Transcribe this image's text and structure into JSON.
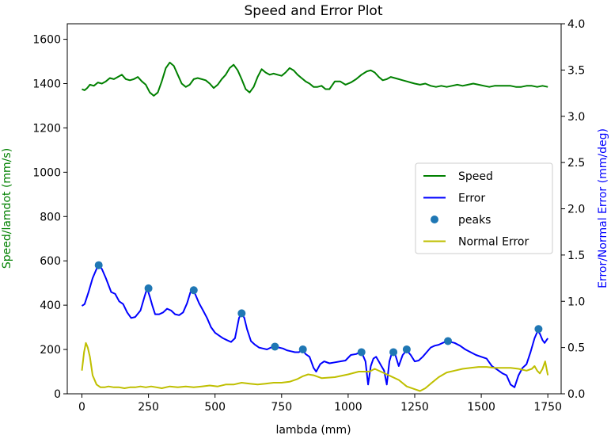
{
  "chart_data": {
    "type": "line",
    "title": "Speed and Error Plot",
    "xlabel": "lambda (mm)",
    "ylabel_left": "Speed/lamdot (mm/s)",
    "ylabel_right": "Error/Normal Error (mm/deg)",
    "xlim": [
      -55,
      1800
    ],
    "ylim_left": [
      0,
      1670
    ],
    "ylim_right": [
      0,
      4.0
    ],
    "xticks": [
      0,
      250,
      500,
      750,
      1000,
      1250,
      1500,
      1750
    ],
    "yticks_left": [
      0,
      200,
      400,
      600,
      800,
      1000,
      1200,
      1400,
      1600
    ],
    "yticks_right": [
      "0.0",
      "0.5",
      "1.0",
      "1.5",
      "2.0",
      "2.5",
      "3.0",
      "3.5",
      "4.0"
    ],
    "legend_position": "center-right",
    "colors": {
      "speed": "#008000",
      "error": "#0000ff",
      "peaks": "#1f77b4",
      "normal_error": "#bfbf00",
      "left_axis_label": "#008000",
      "right_axis_label": "#0000ff"
    },
    "series": [
      {
        "name": "Speed",
        "axis": "left",
        "x": [
          0,
          10,
          20,
          30,
          45,
          60,
          75,
          90,
          105,
          120,
          135,
          150,
          165,
          180,
          195,
          210,
          225,
          240,
          255,
          270,
          285,
          300,
          315,
          330,
          345,
          360,
          375,
          390,
          405,
          420,
          435,
          450,
          465,
          480,
          495,
          510,
          525,
          540,
          555,
          570,
          585,
          600,
          615,
          630,
          645,
          660,
          675,
          690,
          705,
          720,
          735,
          750,
          765,
          780,
          795,
          810,
          825,
          840,
          855,
          870,
          885,
          900,
          915,
          930,
          950,
          970,
          990,
          1010,
          1030,
          1050,
          1070,
          1085,
          1100,
          1115,
          1130,
          1145,
          1160,
          1175,
          1190,
          1205,
          1220,
          1235,
          1250,
          1270,
          1290,
          1310,
          1330,
          1350,
          1370,
          1390,
          1410,
          1430,
          1450,
          1470,
          1490,
          1510,
          1530,
          1550,
          1570,
          1590,
          1610,
          1630,
          1650,
          1670,
          1690,
          1710,
          1730,
          1750
        ],
        "values": [
          1375,
          1370,
          1380,
          1395,
          1390,
          1405,
          1400,
          1410,
          1425,
          1420,
          1430,
          1440,
          1420,
          1415,
          1420,
          1430,
          1410,
          1395,
          1360,
          1345,
          1360,
          1410,
          1470,
          1495,
          1480,
          1440,
          1400,
          1385,
          1395,
          1420,
          1425,
          1420,
          1415,
          1400,
          1380,
          1395,
          1420,
          1440,
          1470,
          1485,
          1460,
          1420,
          1375,
          1360,
          1385,
          1430,
          1465,
          1450,
          1440,
          1445,
          1440,
          1435,
          1450,
          1470,
          1460,
          1440,
          1425,
          1410,
          1400,
          1385,
          1385,
          1390,
          1375,
          1375,
          1410,
          1410,
          1395,
          1405,
          1420,
          1440,
          1455,
          1460,
          1450,
          1430,
          1415,
          1420,
          1430,
          1425,
          1420,
          1415,
          1410,
          1405,
          1400,
          1395,
          1400,
          1390,
          1385,
          1390,
          1385,
          1390,
          1395,
          1390,
          1395,
          1400,
          1395,
          1390,
          1385,
          1390,
          1390,
          1390,
          1390,
          1385,
          1385,
          1390,
          1390,
          1385,
          1390,
          1385
        ]
      },
      {
        "name": "Error",
        "axis": "right",
        "x": [
          0,
          10,
          25,
          40,
          55,
          63,
          75,
          90,
          110,
          125,
          140,
          155,
          170,
          185,
          200,
          220,
          235,
          245,
          255,
          265,
          275,
          290,
          305,
          320,
          335,
          350,
          365,
          380,
          395,
          408,
          415,
          425,
          440,
          455,
          470,
          485,
          500,
          515,
          530,
          545,
          560,
          575,
          590,
          600,
          610,
          620,
          635,
          650,
          665,
          680,
          695,
          710,
          725,
          740,
          755,
          770,
          785,
          800,
          815,
          828,
          840,
          855,
          870,
          880,
          895,
          910,
          930,
          950,
          970,
          990,
          1010,
          1030,
          1045,
          1055,
          1065,
          1075,
          1085,
          1095,
          1105,
          1115,
          1125,
          1135,
          1145,
          1155,
          1165,
          1175,
          1190,
          1205,
          1220,
          1235,
          1250,
          1265,
          1280,
          1295,
          1310,
          1325,
          1340,
          1355,
          1372,
          1385,
          1400,
          1420,
          1440,
          1460,
          1480,
          1500,
          1520,
          1540,
          1560,
          1580,
          1595,
          1610,
          1625,
          1640,
          1655,
          1670,
          1685,
          1700,
          1712,
          1720,
          1730,
          1738,
          1745,
          1750
        ],
        "values": [
          0.95,
          0.97,
          1.1,
          1.25,
          1.35,
          1.39,
          1.35,
          1.25,
          1.1,
          1.08,
          1.0,
          0.97,
          0.88,
          0.82,
          0.83,
          0.9,
          1.05,
          1.14,
          1.05,
          0.95,
          0.86,
          0.86,
          0.88,
          0.92,
          0.9,
          0.86,
          0.85,
          0.88,
          0.98,
          1.1,
          1.12,
          1.08,
          0.98,
          0.9,
          0.82,
          0.72,
          0.66,
          0.63,
          0.6,
          0.58,
          0.56,
          0.6,
          0.82,
          0.87,
          0.82,
          0.7,
          0.57,
          0.53,
          0.5,
          0.49,
          0.48,
          0.5,
          0.51,
          0.5,
          0.49,
          0.47,
          0.46,
          0.45,
          0.45,
          0.48,
          0.43,
          0.4,
          0.28,
          0.24,
          0.32,
          0.35,
          0.33,
          0.34,
          0.35,
          0.36,
          0.42,
          0.43,
          0.45,
          0.42,
          0.35,
          0.1,
          0.3,
          0.38,
          0.4,
          0.35,
          0.3,
          0.25,
          0.1,
          0.35,
          0.45,
          0.44,
          0.3,
          0.42,
          0.47,
          0.42,
          0.35,
          0.36,
          0.4,
          0.45,
          0.5,
          0.52,
          0.53,
          0.55,
          0.57,
          0.56,
          0.55,
          0.52,
          0.48,
          0.45,
          0.42,
          0.4,
          0.38,
          0.3,
          0.26,
          0.22,
          0.2,
          0.1,
          0.07,
          0.2,
          0.28,
          0.32,
          0.45,
          0.6,
          0.68,
          0.65,
          0.58,
          0.55,
          0.58,
          0.6
        ]
      },
      {
        "name": "Normal Error",
        "axis": "right",
        "x": [
          0,
          8,
          15,
          22,
          30,
          40,
          55,
          70,
          85,
          100,
          120,
          140,
          160,
          180,
          200,
          220,
          240,
          260,
          280,
          300,
          330,
          360,
          390,
          420,
          450,
          480,
          510,
          540,
          570,
          600,
          630,
          660,
          690,
          720,
          750,
          780,
          810,
          830,
          850,
          870,
          900,
          950,
          1000,
          1040,
          1080,
          1100,
          1130,
          1160,
          1190,
          1220,
          1250,
          1270,
          1290,
          1310,
          1340,
          1370,
          1400,
          1430,
          1460,
          1490,
          1520,
          1550,
          1580,
          1610,
          1640,
          1670,
          1690,
          1700,
          1710,
          1720,
          1730,
          1740,
          1750
        ],
        "values": [
          0.25,
          0.45,
          0.55,
          0.5,
          0.4,
          0.2,
          0.1,
          0.07,
          0.07,
          0.08,
          0.07,
          0.07,
          0.06,
          0.07,
          0.07,
          0.08,
          0.07,
          0.08,
          0.07,
          0.06,
          0.08,
          0.07,
          0.08,
          0.07,
          0.08,
          0.09,
          0.08,
          0.1,
          0.1,
          0.12,
          0.11,
          0.1,
          0.11,
          0.12,
          0.12,
          0.13,
          0.16,
          0.19,
          0.21,
          0.2,
          0.17,
          0.18,
          0.21,
          0.24,
          0.24,
          0.27,
          0.23,
          0.19,
          0.15,
          0.08,
          0.05,
          0.03,
          0.06,
          0.11,
          0.18,
          0.23,
          0.25,
          0.27,
          0.28,
          0.29,
          0.29,
          0.28,
          0.28,
          0.28,
          0.27,
          0.25,
          0.27,
          0.3,
          0.25,
          0.22,
          0.27,
          0.35,
          0.2
        ]
      },
      {
        "name": "peaks",
        "axis": "right",
        "type": "scatter",
        "x": [
          63,
          250,
          420,
          600,
          725,
          830,
          1050,
          1170,
          1220,
          1375,
          1715
        ],
        "values": [
          1.39,
          1.14,
          1.12,
          0.87,
          0.51,
          0.48,
          0.45,
          0.45,
          0.48,
          0.57,
          0.7
        ]
      }
    ]
  }
}
